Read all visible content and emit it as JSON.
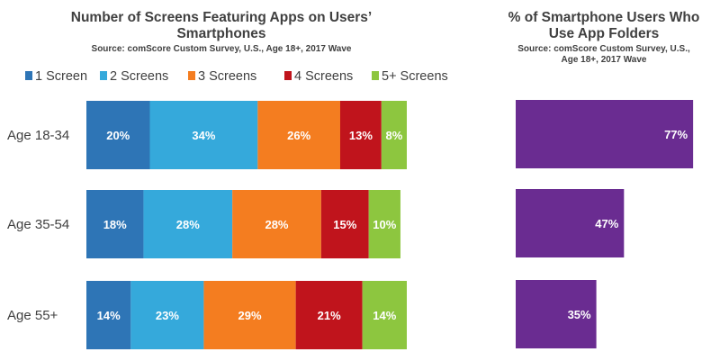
{
  "chart_data": [
    {
      "type": "bar",
      "orientation": "horizontal",
      "stacked": true,
      "title_lines": [
        "Number of Screens Featuring Apps on Users’",
        "Smartphones"
      ],
      "subtitle_lines": [
        "Source: comScore Custom Survey, U.S., Age 18+, 2017 Wave"
      ],
      "legend_position": "top",
      "categories": [
        "Age 18-34",
        "Age 35-54",
        "Age 55+"
      ],
      "series": [
        {
          "name": "1 Screen",
          "color": "#2E75B6",
          "values": [
            20,
            18,
            14
          ],
          "labels": [
            "20%",
            "18%",
            "14%"
          ]
        },
        {
          "name": "2 Screens",
          "color": "#35A9DB",
          "values": [
            34,
            28,
            23
          ],
          "labels": [
            "34%",
            "28%",
            "23%"
          ]
        },
        {
          "name": "3 Screens",
          "color": "#F47D20",
          "values": [
            26,
            28,
            29
          ],
          "labels": [
            "26%",
            "28%",
            "29%"
          ]
        },
        {
          "name": "4 Screens",
          "color": "#C0141C",
          "values": [
            13,
            15,
            21
          ],
          "labels": [
            "13%",
            "15%",
            "21%"
          ]
        },
        {
          "name": "5+ Screens",
          "color": "#8DC63F",
          "values": [
            8,
            10,
            14
          ],
          "labels": [
            "8%",
            "10%",
            "14%"
          ]
        }
      ],
      "xlim": [
        0,
        101
      ],
      "grid": false
    },
    {
      "type": "bar",
      "orientation": "horizontal",
      "title_lines": [
        "% of Smartphone Users Who",
        "Use App Folders"
      ],
      "subtitle_lines": [
        "Source: comScore Custom Survey, U.S.,",
        "Age 18+, 2017 Wave"
      ],
      "categories": [
        "Age 18-34",
        "Age 35-54",
        "Age 55+"
      ],
      "series": [
        {
          "name": "",
          "color": "#6A2C91",
          "values": [
            77,
            47,
            35
          ],
          "labels": [
            "77%",
            "47%",
            "35%"
          ]
        }
      ],
      "xlim": [
        0,
        100
      ],
      "grid": false
    }
  ]
}
